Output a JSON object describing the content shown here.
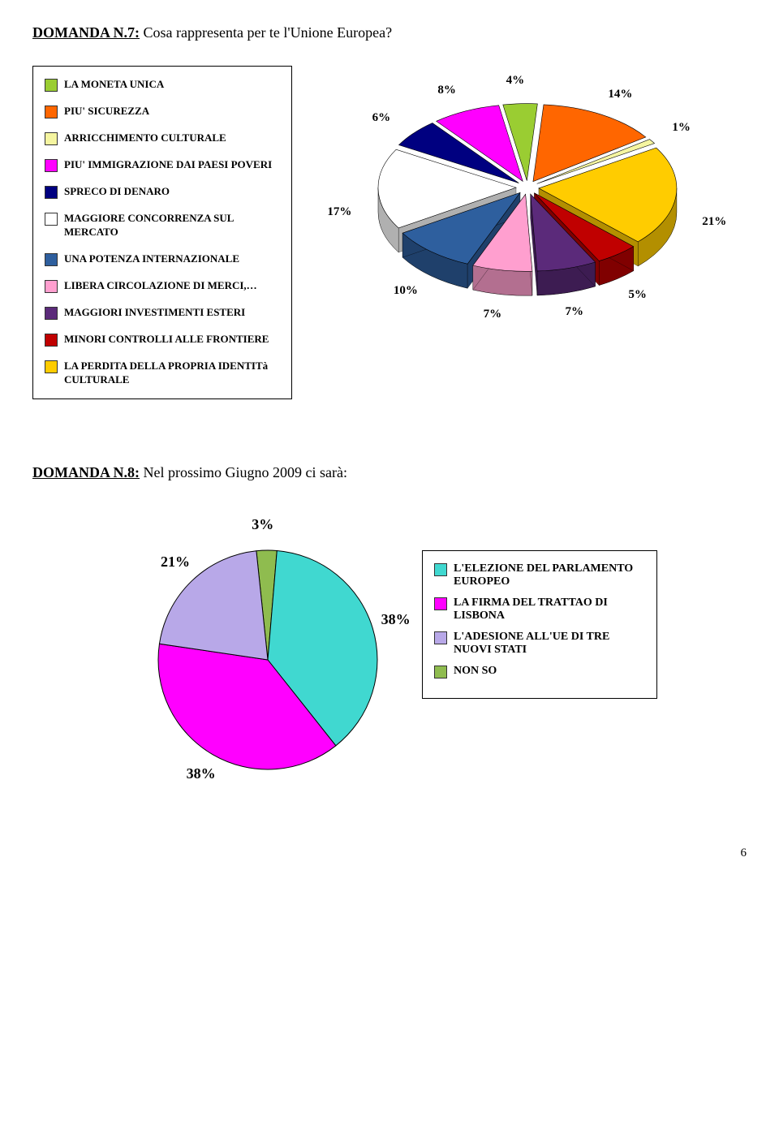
{
  "q7": {
    "heading_label": "DOMANDA N.7:",
    "heading_text": " Cosa rappresenta per te l'Unione Europea?",
    "legend": [
      {
        "label": "LA MONETA UNICA",
        "color": "#9acd32"
      },
      {
        "label": "PIU' SICUREZZA",
        "color": "#ff6600"
      },
      {
        "label": "ARRICCHIMENTO CULTURALE",
        "color": "#f5f5a0"
      },
      {
        "label": "PIU' IMMIGRAZIONE DAI PAESI POVERI",
        "color": "#ff00ff"
      },
      {
        "label": "SPRECO DI DENARO",
        "color": "#000080"
      },
      {
        "label": "MAGGIORE CONCORRENZA SUL MERCATO",
        "color": "#ffffff"
      },
      {
        "label": "UNA POTENZA INTERNAZIONALE",
        "color": "#2e5f9e"
      },
      {
        "label": "LIBERA CIRCOLAZIONE DI MERCI,…",
        "color": "#ff9fcf"
      },
      {
        "label": "MAGGIORI INVESTIMENTI ESTERI",
        "color": "#5b2a7a"
      },
      {
        "label": "MINORI CONTROLLI ALLE FRONTIERE",
        "color": "#c00000"
      },
      {
        "label": "LA PERDITA DELLA PROPRIA IDENTITà CULTURALE",
        "color": "#ffcc00"
      }
    ],
    "chart": {
      "type": "pie3d",
      "background": "#ffffff",
      "depth": 30,
      "label_fontsize": 15,
      "label_fontweight": "bold",
      "slices": [
        {
          "label": "4%",
          "value": 4,
          "color": "#9acd32",
          "side": "#6b8f23"
        },
        {
          "label": "14%",
          "value": 14,
          "color": "#ff6600",
          "side": "#b34700"
        },
        {
          "label": "1%",
          "value": 1,
          "color": "#f5f5a0",
          "side": "#aaa870"
        },
        {
          "label": "21%",
          "value": 21,
          "color": "#ffcc00",
          "side": "#b38f00"
        },
        {
          "label": "5%",
          "value": 5,
          "color": "#c00000",
          "side": "#800000"
        },
        {
          "label": "7%",
          "value": 7,
          "color": "#5b2a7a",
          "side": "#3d1c52"
        },
        {
          "label": "7%",
          "value": 7,
          "color": "#ff9fcf",
          "side": "#b36f90"
        },
        {
          "label": "10%",
          "value": 10,
          "color": "#2e5f9e",
          "side": "#1f406b"
        },
        {
          "label": "17%",
          "value": 17,
          "color": "#ffffff",
          "side": "#b0b0b0"
        },
        {
          "label": "6%",
          "value": 6,
          "color": "#000080",
          "side": "#000050"
        },
        {
          "label": "8%",
          "value": 8,
          "color": "#ff00ff",
          "side": "#b300b3"
        }
      ]
    }
  },
  "q8": {
    "heading_label": "DOMANDA N.8:",
    "heading_text": " Nel prossimo Giugno 2009 ci sarà:",
    "legend": [
      {
        "label": "L'ELEZIONE DEL PARLAMENTO EUROPEO",
        "color": "#40d8d0"
      },
      {
        "label": "LA FIRMA DEL TRATTAO DI LISBONA",
        "color": "#ff00ff"
      },
      {
        "label": "L'ADESIONE ALL'UE DI TRE NUOVI STATI",
        "color": "#b8a8e8"
      },
      {
        "label": "NON SO",
        "color": "#8fbc4f"
      }
    ],
    "chart": {
      "type": "pie",
      "background": "#ffffff",
      "label_fontsize": 18,
      "label_fontweight": "bold",
      "slices": [
        {
          "label": "38%",
          "value": 38,
          "color": "#40d8d0"
        },
        {
          "label": "38%",
          "value": 38,
          "color": "#ff00ff"
        },
        {
          "label": "21%",
          "value": 21,
          "color": "#b8a8e8"
        },
        {
          "label": "3%",
          "value": 3,
          "color": "#8fbc4f"
        }
      ]
    }
  },
  "page_number": "6"
}
